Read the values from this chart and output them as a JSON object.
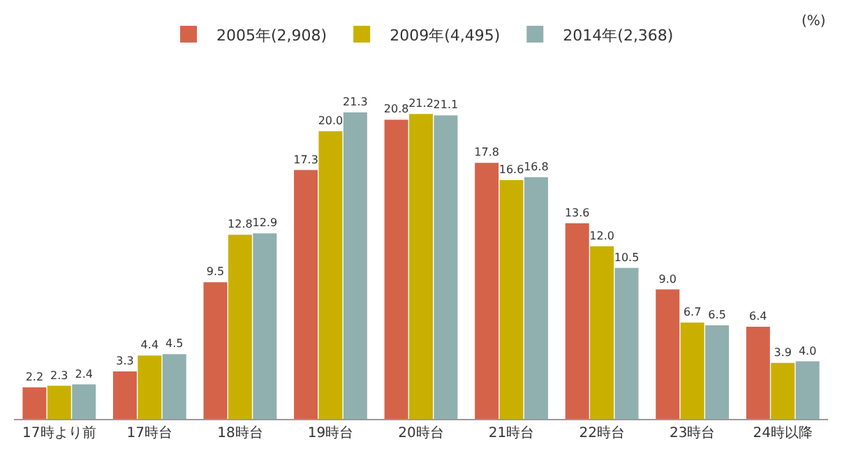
{
  "chart_data": {
    "type": "bar",
    "categories": [
      "17時より前",
      "17時台",
      "18時台",
      "19時台",
      "20時台",
      "21時台",
      "22時台",
      "23時台",
      "24時以降"
    ],
    "series": [
      {
        "name": "2005年(2,908)",
        "color": "#d5634a",
        "values": [
          2.2,
          3.3,
          9.5,
          17.3,
          20.8,
          17.8,
          13.6,
          9.0,
          6.4
        ],
        "value_labels": [
          "2.2",
          "3.3",
          "9.5",
          "17.3",
          "20.8",
          "17.8",
          "13.6",
          "9.0",
          "6.4"
        ]
      },
      {
        "name": "2009年(4,495)",
        "color": "#c9b000",
        "values": [
          2.3,
          4.4,
          12.8,
          20.0,
          21.2,
          16.6,
          12.0,
          6.7,
          3.9
        ],
        "value_labels": [
          "2.3",
          "4.4",
          "12.8",
          "20.0",
          "21.2",
          "16.6",
          "12.0",
          "6.7",
          "3.9"
        ]
      },
      {
        "name": "2014年(2,368)",
        "color": "#8fb0ae",
        "values": [
          2.4,
          4.5,
          12.9,
          21.3,
          21.1,
          16.8,
          10.5,
          6.5,
          4.0
        ],
        "value_labels": [
          "2.4",
          "4.5",
          "12.9",
          "21.3",
          "21.1",
          "16.8",
          "10.5",
          "6.5",
          "4.0"
        ]
      }
    ],
    "annotations": [
      "(%)"
    ],
    "legend": "top"
  }
}
